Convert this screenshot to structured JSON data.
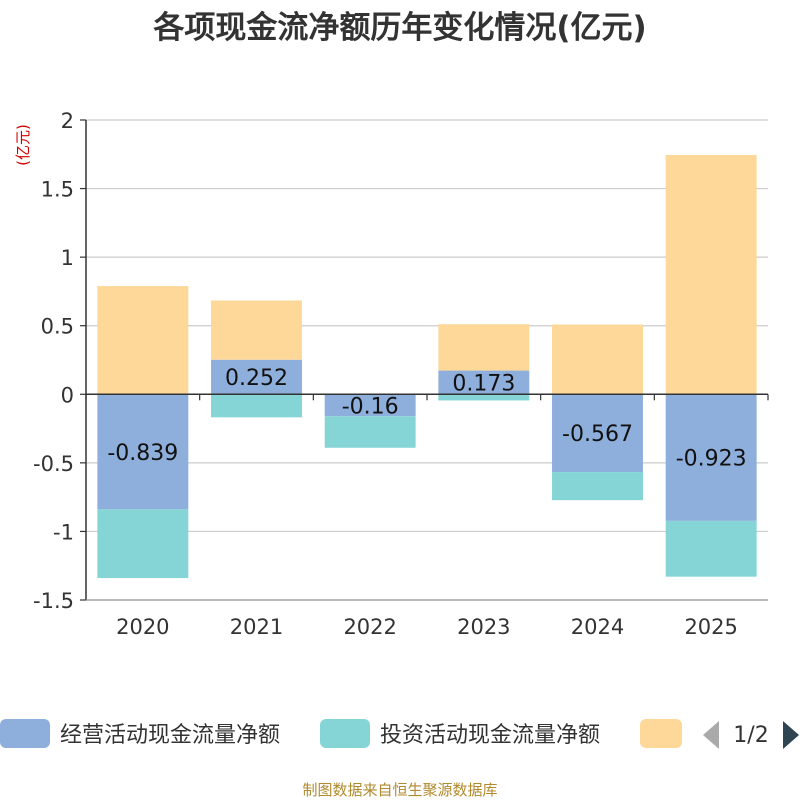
{
  "chart_data": {
    "type": "bar",
    "stacked": true,
    "title": "各项现金流净额历年变化情况(亿元)",
    "ylabel": "(亿元)",
    "xlabel": "",
    "categories": [
      "2020",
      "2021",
      "2022",
      "2023",
      "2024",
      "2025"
    ],
    "ylim": [
      -1.5,
      2
    ],
    "yticks": [
      2,
      1.5,
      1,
      0.5,
      0,
      -0.5,
      -1,
      -1.5
    ],
    "ytick_labels": [
      "2",
      "1.5",
      "1",
      "0.5",
      "0",
      "-0.5",
      "-1",
      "-1.5"
    ],
    "grid": true,
    "series": [
      {
        "name": "经营活动现金流量净额",
        "color": "#8eaedb",
        "values": [
          -0.839,
          0.252,
          -0.16,
          0.173,
          -0.567,
          -0.923
        ],
        "labels": [
          "-0.839",
          "0.252",
          "-0.16",
          "0.173",
          "-0.567",
          "-0.923"
        ]
      },
      {
        "name": "投资活动现金流量净额",
        "color": "#86d5d6",
        "values": [
          -0.501,
          -0.168,
          -0.23,
          -0.045,
          -0.205,
          -0.407
        ]
      },
      {
        "name": "",
        "color": "#fdd899",
        "values": [
          0.789,
          0.432,
          0,
          0.338,
          0.509,
          1.745
        ]
      }
    ]
  },
  "legend": {
    "items": [
      "经营活动现金流量净额",
      "投资活动现金流量净额",
      ""
    ],
    "page": "1/2"
  },
  "source": "制图数据来自恒生聚源数据库",
  "colors": {
    "axis": "#333333",
    "grid": "#cccccc",
    "unit": "#d40000",
    "source": "#b08a2e",
    "pager_disabled": "#aaaaaa",
    "pager_active": "#2f4554"
  }
}
